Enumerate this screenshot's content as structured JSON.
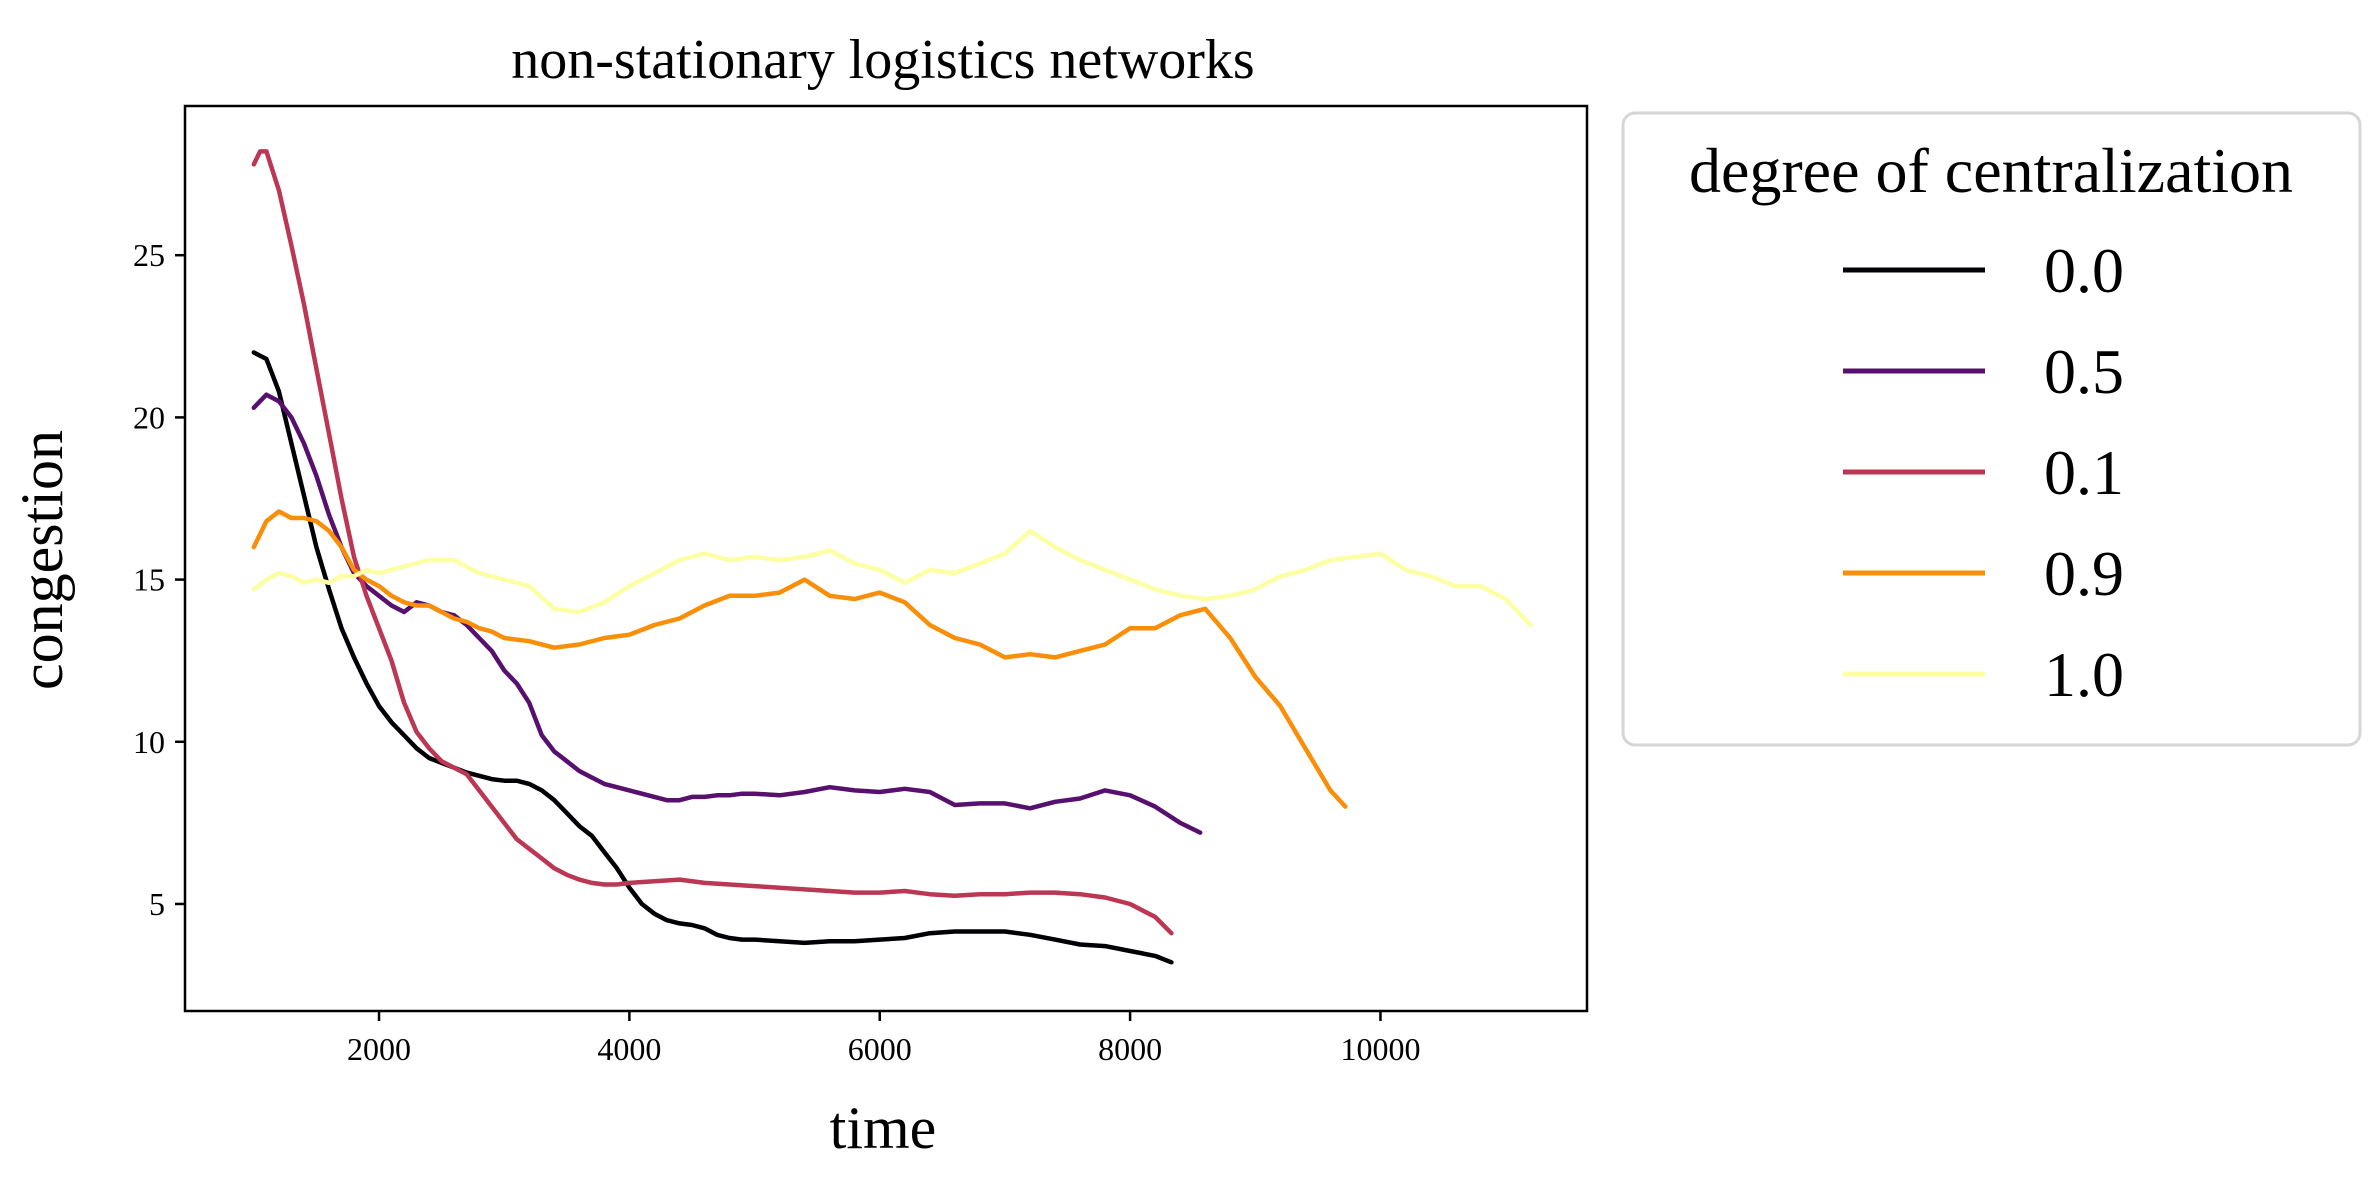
{
  "chart_data": {
    "type": "line",
    "title": "non-stationary logistics networks",
    "xlabel": "time",
    "ylabel": "congestion",
    "xlim": [
      450,
      11650
    ],
    "ylim": [
      1.7,
      29.6
    ],
    "xticks": [
      2000,
      4000,
      6000,
      8000,
      10000
    ],
    "yticks": [
      5,
      10,
      15,
      20,
      25
    ],
    "grid": false,
    "legend": {
      "title": "degree of centralization",
      "placement": "outside-right"
    },
    "series": [
      {
        "name": "0.0",
        "color": "#000004",
        "x": [
          1000,
          1100,
          1200,
          1300,
          1400,
          1500,
          1600,
          1700,
          1800,
          1900,
          2000,
          2100,
          2200,
          2300,
          2400,
          2500,
          2600,
          2700,
          2800,
          2900,
          3000,
          3100,
          3200,
          3300,
          3400,
          3500,
          3600,
          3700,
          3800,
          3900,
          4000,
          4100,
          4200,
          4300,
          4400,
          4500,
          4600,
          4700,
          4800,
          4900,
          5000,
          5200,
          5400,
          5600,
          5800,
          6000,
          6200,
          6400,
          6600,
          6800,
          7000,
          7200,
          7400,
          7600,
          7800,
          8000,
          8200,
          8330
        ],
        "y": [
          22.0,
          21.8,
          20.8,
          19.2,
          17.6,
          16.0,
          14.7,
          13.5,
          12.6,
          11.8,
          11.1,
          10.6,
          10.2,
          9.8,
          9.5,
          9.35,
          9.2,
          9.05,
          8.95,
          8.85,
          8.8,
          8.8,
          8.7,
          8.5,
          8.2,
          7.8,
          7.4,
          7.1,
          6.6,
          6.1,
          5.5,
          5.0,
          4.7,
          4.5,
          4.4,
          4.35,
          4.25,
          4.05,
          3.95,
          3.9,
          3.9,
          3.85,
          3.8,
          3.85,
          3.85,
          3.9,
          3.95,
          4.1,
          4.15,
          4.15,
          4.15,
          4.05,
          3.9,
          3.75,
          3.7,
          3.55,
          3.4,
          3.2
        ]
      },
      {
        "name": "0.5",
        "color": "#57106e",
        "x": [
          1000,
          1100,
          1200,
          1300,
          1400,
          1500,
          1600,
          1700,
          1800,
          1900,
          2000,
          2100,
          2200,
          2300,
          2400,
          2500,
          2600,
          2700,
          2800,
          2900,
          3000,
          3100,
          3200,
          3300,
          3400,
          3500,
          3600,
          3700,
          3800,
          3900,
          4000,
          4100,
          4200,
          4300,
          4400,
          4500,
          4600,
          4700,
          4800,
          4900,
          5000,
          5200,
          5400,
          5600,
          5800,
          6000,
          6200,
          6400,
          6600,
          6800,
          7000,
          7200,
          7400,
          7600,
          7800,
          8000,
          8200,
          8400,
          8560
        ],
        "y": [
          20.3,
          20.7,
          20.5,
          20.0,
          19.2,
          18.2,
          17.0,
          16.0,
          15.2,
          14.8,
          14.5,
          14.2,
          14.0,
          14.3,
          14.2,
          14.0,
          13.9,
          13.6,
          13.2,
          12.8,
          12.2,
          11.8,
          11.2,
          10.2,
          9.7,
          9.4,
          9.1,
          8.9,
          8.7,
          8.6,
          8.5,
          8.4,
          8.3,
          8.2,
          8.2,
          8.3,
          8.3,
          8.35,
          8.35,
          8.4,
          8.4,
          8.35,
          8.45,
          8.6,
          8.5,
          8.45,
          8.55,
          8.45,
          8.05,
          8.1,
          8.1,
          7.95,
          8.15,
          8.25,
          8.5,
          8.35,
          8.0,
          7.5,
          7.2
        ]
      },
      {
        "name": "0.1",
        "color": "#bc3754",
        "x": [
          1000,
          1050,
          1100,
          1200,
          1300,
          1400,
          1500,
          1600,
          1700,
          1800,
          1900,
          2000,
          2100,
          2200,
          2300,
          2400,
          2500,
          2600,
          2700,
          2800,
          2900,
          3000,
          3100,
          3200,
          3300,
          3400,
          3500,
          3600,
          3700,
          3800,
          3900,
          4000,
          4200,
          4400,
          4600,
          4800,
          5000,
          5200,
          5400,
          5600,
          5800,
          6000,
          6200,
          6400,
          6600,
          6800,
          7000,
          7200,
          7400,
          7600,
          7800,
          8000,
          8200,
          8330
        ],
        "y": [
          27.8,
          28.2,
          28.2,
          27.0,
          25.3,
          23.5,
          21.5,
          19.5,
          17.5,
          15.7,
          14.5,
          13.5,
          12.5,
          11.2,
          10.3,
          9.8,
          9.4,
          9.2,
          9.0,
          8.5,
          8.0,
          7.5,
          7.0,
          6.7,
          6.4,
          6.1,
          5.9,
          5.75,
          5.65,
          5.6,
          5.6,
          5.65,
          5.7,
          5.75,
          5.65,
          5.6,
          5.55,
          5.5,
          5.45,
          5.4,
          5.35,
          5.35,
          5.4,
          5.3,
          5.25,
          5.3,
          5.3,
          5.35,
          5.35,
          5.3,
          5.2,
          5.0,
          4.6,
          4.1
        ]
      },
      {
        "name": "0.9",
        "color": "#f98e09",
        "x": [
          1000,
          1100,
          1200,
          1300,
          1400,
          1500,
          1600,
          1700,
          1800,
          1900,
          2000,
          2100,
          2200,
          2300,
          2400,
          2500,
          2600,
          2700,
          2800,
          2900,
          3000,
          3200,
          3400,
          3600,
          3800,
          4000,
          4200,
          4400,
          4600,
          4800,
          5000,
          5200,
          5400,
          5600,
          5800,
          6000,
          6200,
          6400,
          6600,
          6800,
          7000,
          7200,
          7400,
          7600,
          7800,
          8000,
          8200,
          8400,
          8600,
          8800,
          9000,
          9200,
          9400,
          9600,
          9720
        ],
        "y": [
          16.0,
          16.8,
          17.1,
          16.9,
          16.9,
          16.8,
          16.5,
          16.0,
          15.3,
          15.0,
          14.8,
          14.5,
          14.3,
          14.2,
          14.2,
          14.0,
          13.8,
          13.7,
          13.5,
          13.4,
          13.2,
          13.1,
          12.9,
          13.0,
          13.2,
          13.3,
          13.6,
          13.8,
          14.2,
          14.5,
          14.5,
          14.6,
          15.0,
          14.5,
          14.4,
          14.6,
          14.3,
          13.6,
          13.2,
          13.0,
          12.6,
          12.7,
          12.6,
          12.8,
          13.0,
          13.5,
          13.5,
          13.9,
          14.1,
          13.2,
          12.0,
          11.1,
          9.8,
          8.5,
          8.0
        ]
      },
      {
        "name": "1.0",
        "color": "#fcffa4",
        "x": [
          1000,
          1100,
          1200,
          1300,
          1400,
          1500,
          1600,
          1700,
          1800,
          1900,
          2000,
          2200,
          2400,
          2600,
          2800,
          3000,
          3200,
          3400,
          3600,
          3800,
          4000,
          4200,
          4400,
          4600,
          4800,
          5000,
          5200,
          5400,
          5600,
          5800,
          6000,
          6200,
          6400,
          6600,
          6800,
          7000,
          7200,
          7400,
          7600,
          7800,
          8000,
          8200,
          8400,
          8600,
          8800,
          9000,
          9200,
          9400,
          9600,
          9800,
          10000,
          10200,
          10400,
          10600,
          10800,
          11000,
          11200
        ],
        "y": [
          14.7,
          15.0,
          15.2,
          15.1,
          14.9,
          15.0,
          14.9,
          15.1,
          15.1,
          15.3,
          15.2,
          15.4,
          15.6,
          15.6,
          15.2,
          15.0,
          14.8,
          14.1,
          14.0,
          14.3,
          14.8,
          15.2,
          15.6,
          15.8,
          15.6,
          15.7,
          15.6,
          15.7,
          15.9,
          15.5,
          15.3,
          14.9,
          15.3,
          15.2,
          15.5,
          15.8,
          16.5,
          16.0,
          15.6,
          15.3,
          15.0,
          14.7,
          14.5,
          14.4,
          14.5,
          14.7,
          15.1,
          15.3,
          15.6,
          15.7,
          15.8,
          15.3,
          15.1,
          14.8,
          14.8,
          14.4,
          13.6
        ]
      }
    ]
  }
}
